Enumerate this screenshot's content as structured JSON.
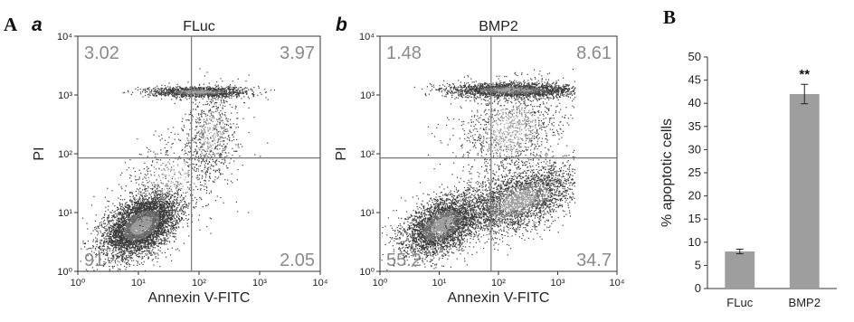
{
  "panel_A_label": "A",
  "panel_B_label": "B",
  "chart_data": [
    {
      "type": "scatter",
      "panel": "a",
      "title": "FLuc",
      "xlabel": "Annexin V-FITC",
      "ylabel": "PI",
      "xscale": "log",
      "yscale": "log",
      "xlim": [
        1,
        10000
      ],
      "ylim": [
        1,
        10000
      ],
      "x_ticks": [
        "10⁰",
        "10¹",
        "10²",
        "10³",
        "10⁴"
      ],
      "y_ticks": [
        "10⁰",
        "10¹",
        "10²",
        "10³",
        "10⁴"
      ],
      "gate_x": 75,
      "gate_y": 85,
      "quadrants": {
        "upper_left": "3.02",
        "upper_right": "3.97",
        "lower_left": "91",
        "lower_right": "2.05"
      }
    },
    {
      "type": "scatter",
      "panel": "b",
      "title": "BMP2",
      "xlabel": "Annexin V-FITC",
      "ylabel": "PI",
      "xscale": "log",
      "yscale": "log",
      "xlim": [
        1,
        10000
      ],
      "ylim": [
        1,
        10000
      ],
      "x_ticks": [
        "10⁰",
        "10¹",
        "10²",
        "10³",
        "10⁴"
      ],
      "y_ticks": [
        "10⁰",
        "10¹",
        "10²",
        "10³",
        "10⁴"
      ],
      "gate_x": 75,
      "gate_y": 85,
      "quadrants": {
        "upper_left": "1.48",
        "upper_right": "8.61",
        "lower_left": "55.2",
        "lower_right": "34.7"
      }
    },
    {
      "type": "bar",
      "categories": [
        "FLuc",
        "BMP2"
      ],
      "values": [
        8,
        42
      ],
      "errors": [
        0.5,
        2.1
      ],
      "ylabel": "% apoptotic cells",
      "ylim": [
        0,
        50
      ],
      "yticks": [
        "0",
        "5",
        "10",
        "15",
        "20",
        "25",
        "30",
        "35",
        "40",
        "45",
        "50"
      ],
      "annotations": [
        "",
        "**"
      ],
      "bar_color": "#9e9e9e"
    }
  ]
}
